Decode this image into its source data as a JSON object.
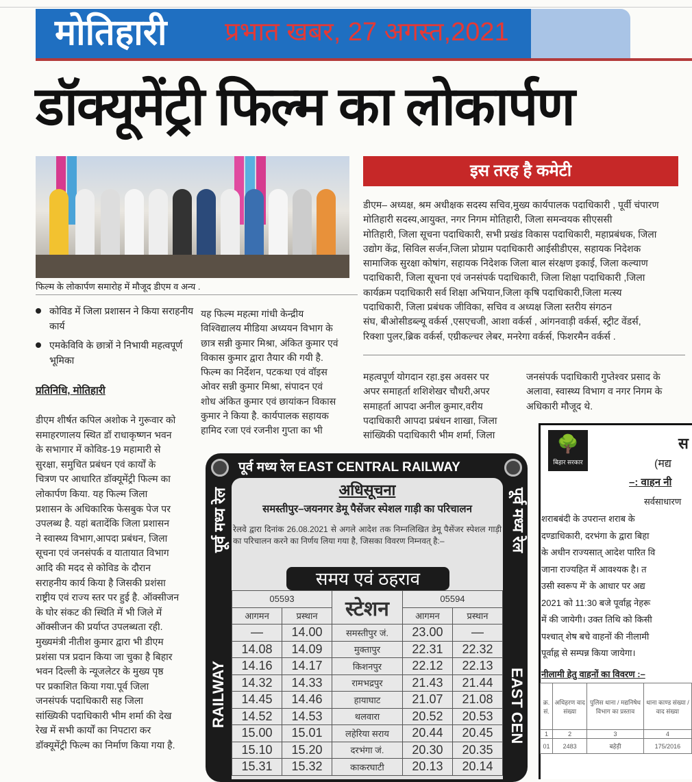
{
  "masthead": {
    "section": "मोतिहारी",
    "dateline": "प्रभात खबर, 27 अगस्त,2021",
    "colors": {
      "band": "#1f6fc1",
      "dateline": "#e53935",
      "rule": "#b33a3a"
    }
  },
  "headline": "डॉक्यूमेंट्री फिल्म का लोकार्पण",
  "photo": {
    "caption": "फिल्म के लोकार्पण समारोह में मौजूद डीएम व अन्य ."
  },
  "committee": {
    "title": "इस तरह है कमेटी",
    "title_bg": "#c62828",
    "lines": [
      "डीएम– अध्यक्ष, श्रम अधीक्षक सदस्य सचिव,मुख्य कार्यपालक पदाधिकारी , पूर्वी चंपारण",
      "मोतिहारी सदस्य,आयुक्त, नगर निगम मोतिहारी, जिला समन्वयक सीएससी",
      "मोतिहारी, जिला सूचना पदाधिकारी, सभी प्रखंड विकास पदाधिकारी, महाप्रबंधक, जिला",
      "उद्योग केंद्र, सिविल सर्जन,जिला प्रोग्राम पदाधिकारी आईसीडीएस, सहायक निदेशक",
      "सामाजिक सुरक्षा कोषांग, सहायक निदेशक जिला बाल संरक्षण इकाई, जिला कल्याण",
      "पदाधिकारी, जिला सूचना एवं जनसंपर्क पदाधिकारी, जिला शिक्षा पदाधिकारी ,जिला",
      "कार्यक्रम पदाधिकारी सर्व शिक्षा अभियान,जिला कृषि पदाधिकारी,जिला मत्स्य",
      "पदाधिकारी, जिला प्रबंधक जीविका, सचिव व अध्यक्ष जिला स्तरीय संगठन",
      "संघ, बीओसीडब्ल्यू वर्कर्स ,एसएचजी, आशा वर्कर्स , आंगनवाड़ी वर्कर्स, स्ट्रीट वेंडर्स,",
      "रिक्शा पुलर,ब्रिक वर्कर्स, एग्रीकल्चर लेबर, मनरेगा वर्कर्स, फिशरमैन वर्कर्स ."
    ]
  },
  "highlights": [
    "कोविड में जिला प्रशासन ने किया सराहनीय कार्य",
    "एमकेविवि के छात्रों ने निभायी महत्वपूर्ण भूमिका"
  ],
  "byline": "प्रतिनिधि, मोतिहारी",
  "body_col1": [
    "डीएम शीर्षत कपिल अशोक ने गुरूवार को",
    "समाहरणालय स्थित डॉ राधाकृष्णन भवन",
    "के सभागार में कोविड-19 महामारी से",
    "सुरक्षा, समुचित प्रबंधन एवं कार्यों के",
    "चित्रण पर आधारित डॉक्यूमेंट्री फिल्म का",
    "लोकार्पण किया. यह फिल्म जिला",
    "प्रशासन के अधिकारिक फेसबुक पेज पर",
    "उपलब्ध है. यहां बतादेंकि जिला प्रशासन",
    "ने स्वास्थ्य विभाग,आपदा प्रबंधन, जिला",
    "सूचना एवं जनसंपर्क व यातायात विभाग",
    "आदि की मदद से कोविड के दौरान",
    "सराहनीय कार्य किया है जिसकी प्रशंसा",
    "राष्ट्रीय एवं राज्य स्तर पर हुई है. ऑक्सीजन",
    "के घोर संकट की स्थिति में भी जिले में",
    "ऑक्सीजन की प्रर्याप्त उपलब्धता रही.",
    "मुख्यमंत्री नीतीश कुमार द्वारा भी डीएम",
    "प्रशंसा पत्र प्रदान किया जा चुका है बिहार",
    "भवन दिल्ली के न्यूजलेटर के मुख्य पृष्ठ",
    "पर प्रकाशित किया गया.पूर्व जिला",
    "जनसंपर्क पदाधिकारी सह जिला",
    "सांख्यिकी पदाधिकारी भीम शर्मा की देख",
    "रेख में सभी कार्यों का निपटारा कर",
    "डॉक्यूमेंट्री फिल्म का निर्माण किया गया है."
  ],
  "body_col2": [
    "यह फिल्म महत्मा गांधी केन्द्रीय",
    "विश्विद्यालय मीडिया अध्ययन विभाग के",
    "छात्र सन्नी कुमार मिश्रा, अंकित कुमार एवं",
    "विकास कुमार द्वारा तैयार की गयी है.",
    "फिल्म का निर्देशन, पटकथा एवं वॉइस",
    "ओवर सन्नी कुमार मिश्रा, संपादन एवं",
    "शोध अंकित कुमार एवं छायांकन विकास",
    "कुमार ने किया है. कार्यपालक सहायक",
    "हामिद रजा एवं रजनीश गुप्ता का भी"
  ],
  "body_col3": [
    "महत्वपूर्ण योगदान रहा.इस अवसर पर",
    "अपर समाहर्ता शशिशेखर चौधरी,अपर",
    "समाहर्ता आपदा अनील कुमार,वरीय",
    "पदाधिकारी आपदा प्रबंधन शाखा, जिला",
    "सांख्यिकी पदाधिकारी भीम शर्मा, जिला"
  ],
  "body_col4": [
    "जनसंपर्क पदाधिकारी गुप्तेश्वर प्रसाद के",
    "अलावा, स्वास्थ्य विभाग व नगर निगम के",
    "अधिकारी मौजूद थे."
  ],
  "railway_ad": {
    "header": "पूर्व मध्य रेल EAST CENTRAL RAILWAY",
    "side_left": "पूर्व मध्य रेल",
    "side_left_en": "RAILWAY",
    "side_right": "पूर्व मध्य रेल",
    "side_right_en": "EAST CEN",
    "notice": "अधिसूचना",
    "title": "समस्तीपुर–जयनगर डेमू पैसेंजर स्पेशल गाड़ी का परिचालन",
    "description": "रेलवे द्वारा दिनांक 26.08.2021 से अगले आदेश तक निम्नलिखित डेमू पैसेंजर स्पेशल गाड़ी का परिचालन करने का निर्णय लिया गया है, जिसका विवरण निम्नवत् है:–",
    "timing_title": "समय एवं ठहराव",
    "train_up": "05593",
    "train_down": "05594",
    "station_header": "स्टेशन",
    "arrival": "आगमन",
    "departure": "प्रस्थान",
    "rows": [
      {
        "up_arr": "—",
        "up_dep": "14.00",
        "station": "समस्तीपुर जं.",
        "dn_arr": "23.00",
        "dn_dep": "—"
      },
      {
        "up_arr": "14.08",
        "up_dep": "14.09",
        "station": "मुक्तापुर",
        "dn_arr": "22.31",
        "dn_dep": "22.32"
      },
      {
        "up_arr": "14.16",
        "up_dep": "14.17",
        "station": "किशनपुर",
        "dn_arr": "22.12",
        "dn_dep": "22.13"
      },
      {
        "up_arr": "14.32",
        "up_dep": "14.33",
        "station": "रामभद्रपुर",
        "dn_arr": "21.43",
        "dn_dep": "21.44"
      },
      {
        "up_arr": "14.45",
        "up_dep": "14.46",
        "station": "हायाघाट",
        "dn_arr": "21.07",
        "dn_dep": "21.08"
      },
      {
        "up_arr": "14.52",
        "up_dep": "14.53",
        "station": "थलवारा",
        "dn_arr": "20.52",
        "dn_dep": "20.53"
      },
      {
        "up_arr": "15.00",
        "up_dep": "15.01",
        "station": "लहेरिया सराय",
        "dn_arr": "20.44",
        "dn_dep": "20.45"
      },
      {
        "up_arr": "15.10",
        "up_dep": "15.20",
        "station": "दरभंगा जं.",
        "dn_arr": "20.30",
        "dn_dep": "20.35"
      },
      {
        "up_arr": "15.31",
        "up_dep": "15.32",
        "station": "काकरघाटी",
        "dn_arr": "20.13",
        "dn_dep": "20.14"
      }
    ]
  },
  "bihar_ad": {
    "logo_text": "बिहार सरकार",
    "title_fragment": "स",
    "subtitle_fragment": "(मद्य",
    "notice_fragment": "–: वाहन नी",
    "public_fragment": "सर्वसाधारण",
    "lines": [
      "शराबबंदी के उपरान्त शराब के",
      "दण्डाधिकारी, दरभंगा के द्वारा बिहा",
      "के अधीन राज्यसात् आदेश पारित वि",
      "जाना राज्यहित में आवश्यक है। त",
      "उसी स्वरूप में' के आधार पर अद्य",
      "2021 को 11:30 बजे पूर्वाह्न नेहरू",
      "में की जायेगी। उक्त तिथि को किसी",
      "पश्चात् शेष बचे वाहनों की नीलामी",
      "पूर्वाह्न से सम्पन्न किया जायेगा।"
    ],
    "table_title": "नीलामी हेतु वाहनों का विवरण :–",
    "table_headers": [
      "क्र. सं.",
      "अधिहरण वाद संख्या",
      "पुलिस थाना / मद्यनिषेध विभाग का प्रस्ताव",
      "थाना काण्ड संख्या / वाद संख्या"
    ],
    "table_numbers": [
      "1",
      "2",
      "3",
      "4"
    ],
    "table_row": [
      "01",
      "2483",
      "बहेड़ी",
      "175/2016"
    ]
  }
}
